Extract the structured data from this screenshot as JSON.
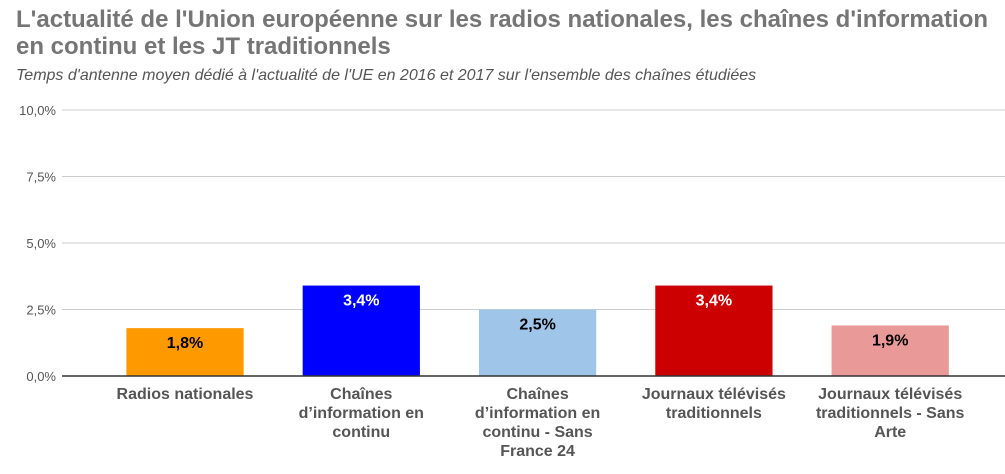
{
  "chart_data": {
    "type": "bar",
    "title": "L'actualité de l'Union européenne sur les radios nationales, les chaînes d'information en continu et les JT traditionnels",
    "subtitle": "Temps d'antenne moyen dédié à l'actualité de l'UE en 2016 et 2017 sur l'ensemble des chaînes étudiées",
    "xlabel": "",
    "ylabel": "",
    "ylim": [
      0,
      10
    ],
    "yticks": [
      {
        "value": 0,
        "label": "0,0%"
      },
      {
        "value": 2.5,
        "label": "2,5%"
      },
      {
        "value": 5,
        "label": "5,0%"
      },
      {
        "value": 7.5,
        "label": "7,5%"
      },
      {
        "value": 10,
        "label": "10,0%"
      }
    ],
    "grid": true,
    "legend": "none",
    "categories": [
      [
        "Radios nationales"
      ],
      [
        "Chaînes",
        "d’information en",
        "continu"
      ],
      [
        "Chaînes",
        "d’information en",
        "continu - Sans",
        "France 24"
      ],
      [
        "Journaux télévisés",
        "traditionnels"
      ],
      [
        "Journaux télévisés",
        "traditionnels - Sans",
        "Arte"
      ]
    ],
    "values": [
      1.8,
      3.4,
      2.5,
      3.4,
      1.9
    ],
    "value_labels": [
      "1,8%",
      "3,4%",
      "2,5%",
      "3,4%",
      "1,9%"
    ],
    "colors": [
      "#ff9900",
      "#0000ff",
      "#9fc5e8",
      "#cc0000",
      "#ea9999"
    ],
    "label_colors": [
      "#000000",
      "#ffffff",
      "#000000",
      "#ffffff",
      "#000000"
    ]
  }
}
